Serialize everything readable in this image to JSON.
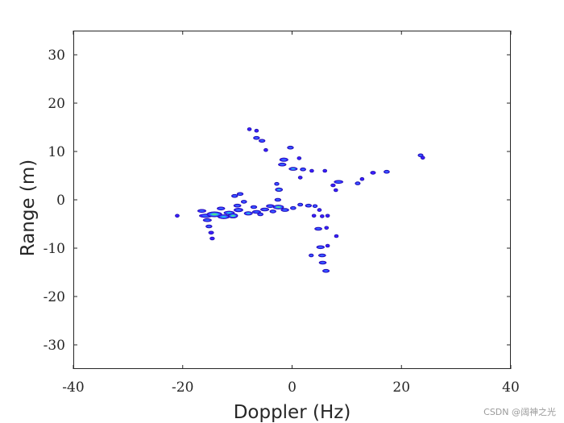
{
  "chart_data": {
    "type": "heatmap",
    "title": "",
    "xlabel": "Doppler (Hz)",
    "ylabel": "Range (m)",
    "xlim": [
      -40,
      40
    ],
    "ylim": [
      -35,
      35
    ],
    "xticks": [
      -40,
      -20,
      0,
      20,
      40
    ],
    "yticks": [
      -30,
      -20,
      -10,
      0,
      10,
      20,
      30
    ],
    "xtick_labels": [
      "-40",
      "-20",
      "0",
      "20",
      "40"
    ],
    "ytick_labels": [
      "-30",
      "-20",
      "-10",
      "0",
      "10",
      "20",
      "30"
    ],
    "grid": false,
    "box": true,
    "colormap": [
      "#3d1cff",
      "#2f6cff",
      "#21c7e0",
      "#5de07a",
      "#e3e23a"
    ],
    "blobs": [
      {
        "x": -21,
        "y": -3.3,
        "w": 0.6,
        "h": 0.4,
        "v": 0.3
      },
      {
        "x": -16.5,
        "y": -2.3,
        "w": 1.4,
        "h": 0.5,
        "v": 0.5
      },
      {
        "x": -15.8,
        "y": -3.3,
        "w": 2.2,
        "h": 0.6,
        "v": 0.6
      },
      {
        "x": -14.2,
        "y": -3.0,
        "w": 2.6,
        "h": 0.9,
        "v": 1.0
      },
      {
        "x": -15.5,
        "y": -4.2,
        "w": 1.4,
        "h": 0.5,
        "v": 0.5
      },
      {
        "x": -15.2,
        "y": -5.5,
        "w": 1.0,
        "h": 0.4,
        "v": 0.4
      },
      {
        "x": -14.8,
        "y": -6.8,
        "w": 0.8,
        "h": 0.4,
        "v": 0.3
      },
      {
        "x": -14.6,
        "y": -8.0,
        "w": 0.7,
        "h": 0.4,
        "v": 0.3
      },
      {
        "x": -13.0,
        "y": -1.8,
        "w": 1.3,
        "h": 0.5,
        "v": 0.5
      },
      {
        "x": -12.5,
        "y": -3.5,
        "w": 2.0,
        "h": 0.7,
        "v": 0.8
      },
      {
        "x": -11.5,
        "y": -2.7,
        "w": 1.8,
        "h": 0.6,
        "v": 0.7
      },
      {
        "x": -10.8,
        "y": -3.3,
        "w": 1.6,
        "h": 0.8,
        "v": 0.9
      },
      {
        "x": -10.0,
        "y": -1.2,
        "w": 1.2,
        "h": 0.5,
        "v": 0.5
      },
      {
        "x": -10.5,
        "y": 0.8,
        "w": 1.0,
        "h": 0.4,
        "v": 0.4
      },
      {
        "x": -9.5,
        "y": 1.2,
        "w": 1.0,
        "h": 0.4,
        "v": 0.4
      },
      {
        "x": -9.8,
        "y": -2.1,
        "w": 1.5,
        "h": 0.6,
        "v": 0.6
      },
      {
        "x": -8.8,
        "y": -0.4,
        "w": 0.9,
        "h": 0.4,
        "v": 0.4
      },
      {
        "x": -8.0,
        "y": -2.8,
        "w": 1.4,
        "h": 0.6,
        "v": 0.7
      },
      {
        "x": -7.0,
        "y": -1.5,
        "w": 1.0,
        "h": 0.5,
        "v": 0.5
      },
      {
        "x": -6.5,
        "y": -2.5,
        "w": 1.4,
        "h": 0.5,
        "v": 0.6
      },
      {
        "x": -5.8,
        "y": -3.0,
        "w": 0.9,
        "h": 0.4,
        "v": 0.4
      },
      {
        "x": -5.0,
        "y": -2.0,
        "w": 1.4,
        "h": 0.5,
        "v": 0.5
      },
      {
        "x": -4.0,
        "y": -1.3,
        "w": 1.3,
        "h": 0.5,
        "v": 0.6
      },
      {
        "x": -3.5,
        "y": -2.4,
        "w": 1.0,
        "h": 0.5,
        "v": 0.5
      },
      {
        "x": -2.5,
        "y": -1.5,
        "w": 1.8,
        "h": 0.7,
        "v": 0.95
      },
      {
        "x": -1.3,
        "y": -2.1,
        "w": 1.3,
        "h": 0.5,
        "v": 0.6
      },
      {
        "x": -2.6,
        "y": 0.0,
        "w": 1.0,
        "h": 0.5,
        "v": 0.5
      },
      {
        "x": -2.4,
        "y": 2.1,
        "w": 1.2,
        "h": 0.6,
        "v": 0.7
      },
      {
        "x": -2.8,
        "y": 3.3,
        "w": 0.7,
        "h": 0.4,
        "v": 0.4
      },
      {
        "x": 0.2,
        "y": -1.7,
        "w": 0.9,
        "h": 0.4,
        "v": 0.4
      },
      {
        "x": 1.5,
        "y": -1.0,
        "w": 0.8,
        "h": 0.4,
        "v": 0.4
      },
      {
        "x": 3.0,
        "y": -1.2,
        "w": 1.0,
        "h": 0.4,
        "v": 0.4
      },
      {
        "x": 4.2,
        "y": -1.3,
        "w": 0.7,
        "h": 0.4,
        "v": 0.4
      },
      {
        "x": 5.0,
        "y": -2.1,
        "w": 0.6,
        "h": 0.3,
        "v": 0.3
      },
      {
        "x": 4.0,
        "y": -3.3,
        "w": 0.5,
        "h": 0.3,
        "v": 0.3
      },
      {
        "x": 5.5,
        "y": -3.4,
        "w": 0.5,
        "h": 0.3,
        "v": 0.3
      },
      {
        "x": 6.5,
        "y": -3.3,
        "w": 0.4,
        "h": 0.3,
        "v": 0.3
      },
      {
        "x": 4.8,
        "y": -6.0,
        "w": 1.2,
        "h": 0.5,
        "v": 0.6
      },
      {
        "x": 6.3,
        "y": -5.8,
        "w": 0.5,
        "h": 0.3,
        "v": 0.3
      },
      {
        "x": 8.1,
        "y": -7.5,
        "w": 0.4,
        "h": 0.3,
        "v": 0.3
      },
      {
        "x": 5.2,
        "y": -9.8,
        "w": 1.3,
        "h": 0.5,
        "v": 0.6
      },
      {
        "x": 6.5,
        "y": -9.5,
        "w": 0.5,
        "h": 0.3,
        "v": 0.3
      },
      {
        "x": 3.5,
        "y": -11.5,
        "w": 0.7,
        "h": 0.4,
        "v": 0.4
      },
      {
        "x": 5.5,
        "y": -11.5,
        "w": 1.2,
        "h": 0.5,
        "v": 0.5
      },
      {
        "x": 5.6,
        "y": -13.0,
        "w": 1.2,
        "h": 0.5,
        "v": 0.5
      },
      {
        "x": 6.2,
        "y": -14.7,
        "w": 1.1,
        "h": 0.4,
        "v": 0.4
      },
      {
        "x": -7.8,
        "y": 14.6,
        "w": 0.5,
        "h": 0.3,
        "v": 0.3
      },
      {
        "x": -6.5,
        "y": 14.3,
        "w": 0.3,
        "h": 0.2,
        "v": 0.2
      },
      {
        "x": -6.5,
        "y": 12.8,
        "w": 1.0,
        "h": 0.4,
        "v": 0.4
      },
      {
        "x": -5.5,
        "y": 12.2,
        "w": 1.0,
        "h": 0.5,
        "v": 0.5
      },
      {
        "x": -4.8,
        "y": 10.3,
        "w": 0.5,
        "h": 0.3,
        "v": 0.3
      },
      {
        "x": -0.3,
        "y": 10.8,
        "w": 1.0,
        "h": 0.4,
        "v": 0.4
      },
      {
        "x": -1.5,
        "y": 8.3,
        "w": 1.4,
        "h": 0.6,
        "v": 0.6
      },
      {
        "x": 1.3,
        "y": 8.6,
        "w": 0.5,
        "h": 0.3,
        "v": 0.3
      },
      {
        "x": -1.8,
        "y": 7.3,
        "w": 1.3,
        "h": 0.5,
        "v": 0.5
      },
      {
        "x": 0.2,
        "y": 6.4,
        "w": 1.4,
        "h": 0.5,
        "v": 0.7
      },
      {
        "x": 2.0,
        "y": 6.3,
        "w": 0.9,
        "h": 0.4,
        "v": 0.4
      },
      {
        "x": 3.6,
        "y": 6.0,
        "w": 0.4,
        "h": 0.3,
        "v": 0.3
      },
      {
        "x": 6.0,
        "y": 6.0,
        "w": 0.4,
        "h": 0.2,
        "v": 0.2
      },
      {
        "x": 1.5,
        "y": 4.6,
        "w": 0.6,
        "h": 0.3,
        "v": 0.3
      },
      {
        "x": 8.5,
        "y": 3.7,
        "w": 1.5,
        "h": 0.5,
        "v": 0.5
      },
      {
        "x": 7.5,
        "y": 3.0,
        "w": 0.7,
        "h": 0.3,
        "v": 0.3
      },
      {
        "x": 8.0,
        "y": 2.0,
        "w": 0.4,
        "h": 0.3,
        "v": 0.3
      },
      {
        "x": 12.0,
        "y": 3.4,
        "w": 0.8,
        "h": 0.4,
        "v": 0.4
      },
      {
        "x": 12.8,
        "y": 4.3,
        "w": 0.4,
        "h": 0.3,
        "v": 0.3
      },
      {
        "x": 14.8,
        "y": 5.6,
        "w": 0.8,
        "h": 0.3,
        "v": 0.3
      },
      {
        "x": 17.3,
        "y": 5.8,
        "w": 0.9,
        "h": 0.4,
        "v": 0.4
      },
      {
        "x": 23.5,
        "y": 9.2,
        "w": 0.8,
        "h": 0.4,
        "v": 0.4
      },
      {
        "x": 23.9,
        "y": 8.7,
        "w": 0.6,
        "h": 0.3,
        "v": 0.3
      }
    ]
  },
  "watermark": "CSDN @阔神之光"
}
